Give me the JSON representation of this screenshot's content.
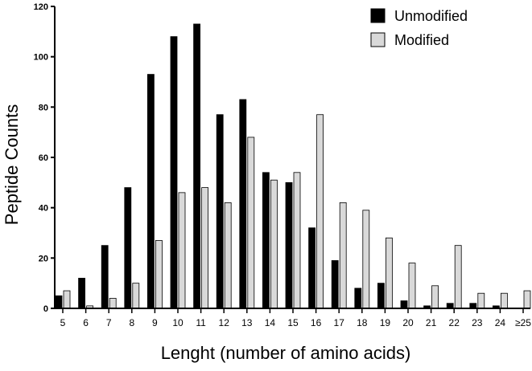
{
  "chart_data": {
    "type": "bar",
    "title": "",
    "xlabel": "Lenght (number of amino acids)",
    "ylabel": "Peptide Counts",
    "ylim": [
      0,
      120
    ],
    "yticks": [
      0,
      20,
      40,
      60,
      80,
      100,
      120
    ],
    "categories": [
      "5",
      "6",
      "7",
      "8",
      "9",
      "10",
      "11",
      "12",
      "13",
      "14",
      "15",
      "16",
      "17",
      "18",
      "19",
      "20",
      "21",
      "22",
      "23",
      "24",
      "≥25"
    ],
    "series": [
      {
        "name": "Unmodified",
        "color": "#000000",
        "values": [
          5,
          12,
          25,
          48,
          93,
          108,
          113,
          77,
          83,
          54,
          50,
          32,
          19,
          8,
          10,
          3,
          1,
          2,
          2,
          1,
          0
        ]
      },
      {
        "name": "Modified",
        "color": "#d9d9d9",
        "values": [
          7,
          1,
          4,
          10,
          27,
          46,
          48,
          42,
          68,
          51,
          54,
          77,
          42,
          39,
          28,
          18,
          9,
          25,
          6,
          6,
          7
        ]
      }
    ],
    "grid": false,
    "legend_position": "top-right"
  }
}
